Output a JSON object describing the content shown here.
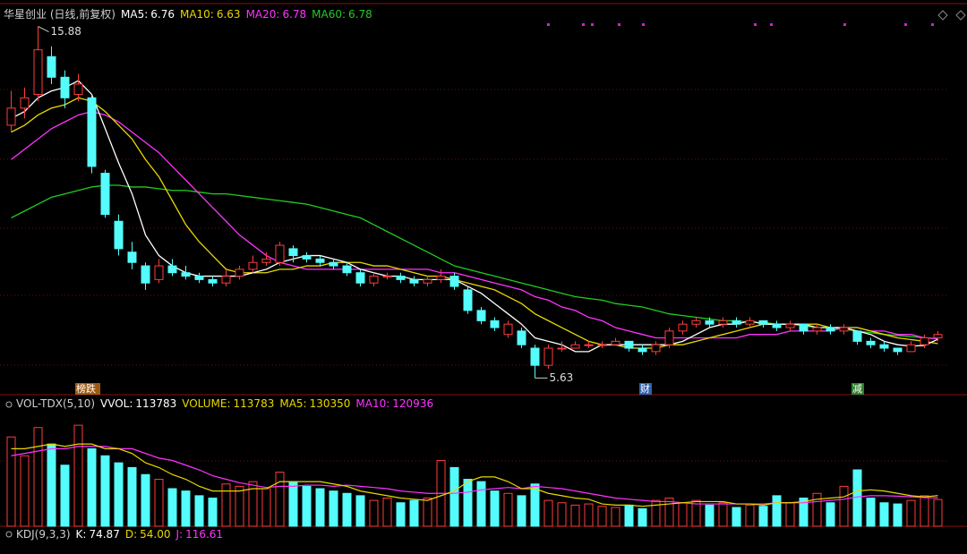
{
  "chart_data": [
    {
      "type": "candlestick",
      "title": "华星创业 (日线,前复权)",
      "indicators": [
        {
          "label": "MA5:",
          "value": 6.76,
          "color": "#ffffff"
        },
        {
          "label": "MA10:",
          "value": 6.63,
          "color": "#e8d800"
        },
        {
          "label": "MA20:",
          "value": 6.78,
          "color": "#ff33ff"
        },
        {
          "label": "MA60:",
          "value": 6.78,
          "color": "#22cc22"
        }
      ],
      "up_color": "#ff3c3c",
      "down_color": "#54fcfc",
      "open": [
        13.0,
        13.5,
        13.9,
        15.0,
        14.4,
        13.9,
        13.8,
        11.6,
        10.2,
        9.3,
        8.9,
        8.5,
        8.9,
        8.7,
        8.6,
        8.5,
        8.4,
        8.6,
        8.8,
        9.0,
        9.0,
        9.4,
        9.2,
        9.1,
        9.0,
        8.9,
        8.7,
        8.4,
        8.6,
        8.6,
        8.5,
        8.4,
        8.5,
        8.6,
        8.2,
        7.6,
        7.3,
        6.9,
        7.0,
        6.5,
        6.0,
        6.5,
        6.5,
        6.6,
        6.6,
        6.6,
        6.7,
        6.5,
        6.4,
        6.6,
        7.0,
        7.2,
        7.3,
        7.2,
        7.3,
        7.2,
        7.3,
        7.2,
        7.1,
        7.2,
        7.0,
        7.1,
        7.0,
        7.0,
        6.7,
        6.6,
        6.5,
        6.4,
        6.6,
        6.8
      ],
      "high": [
        14.0,
        14.1,
        15.88,
        15.3,
        14.6,
        14.5,
        13.9,
        11.7,
        10.4,
        9.6,
        9.0,
        9.1,
        9.1,
        8.9,
        8.7,
        8.6,
        8.8,
        8.9,
        9.2,
        9.3,
        9.6,
        9.5,
        9.3,
        9.2,
        9.1,
        9.0,
        8.8,
        8.7,
        8.7,
        8.7,
        8.6,
        8.6,
        8.8,
        8.7,
        8.3,
        7.7,
        7.4,
        7.3,
        7.1,
        6.6,
        6.6,
        6.7,
        6.7,
        6.7,
        6.7,
        6.8,
        6.7,
        6.6,
        6.7,
        7.1,
        7.3,
        7.4,
        7.4,
        7.4,
        7.4,
        7.4,
        7.3,
        7.3,
        7.3,
        7.2,
        7.2,
        7.2,
        7.2,
        7.0,
        6.8,
        6.7,
        6.5,
        6.7,
        6.9,
        7.0
      ],
      "low": [
        12.8,
        13.2,
        13.7,
        14.2,
        13.5,
        13.7,
        11.6,
        10.3,
        9.2,
        8.8,
        8.2,
        8.4,
        8.6,
        8.5,
        8.4,
        8.3,
        8.3,
        8.5,
        8.7,
        8.9,
        8.9,
        9.0,
        9.0,
        8.9,
        8.8,
        8.6,
        8.3,
        8.3,
        8.5,
        8.4,
        8.3,
        8.3,
        8.4,
        8.2,
        7.5,
        7.2,
        7.0,
        6.8,
        6.5,
        5.63,
        5.9,
        6.4,
        6.5,
        6.5,
        6.5,
        6.6,
        6.4,
        6.3,
        6.3,
        6.5,
        6.9,
        7.1,
        7.1,
        7.1,
        7.1,
        7.1,
        7.1,
        7.0,
        7.0,
        6.9,
        6.9,
        6.9,
        6.9,
        6.6,
        6.5,
        6.4,
        6.3,
        6.4,
        6.5,
        6.7
      ],
      "close": [
        13.5,
        13.8,
        15.2,
        14.4,
        13.8,
        14.2,
        11.8,
        10.4,
        9.4,
        9.0,
        8.4,
        8.9,
        8.7,
        8.6,
        8.5,
        8.4,
        8.6,
        8.8,
        9.0,
        9.1,
        9.5,
        9.2,
        9.1,
        9.0,
        8.9,
        8.7,
        8.4,
        8.6,
        8.6,
        8.5,
        8.4,
        8.5,
        8.6,
        8.3,
        7.6,
        7.3,
        7.1,
        7.2,
        6.6,
        6.0,
        6.5,
        6.5,
        6.6,
        6.6,
        6.6,
        6.7,
        6.5,
        6.4,
        6.6,
        7.0,
        7.2,
        7.3,
        7.2,
        7.3,
        7.2,
        7.3,
        7.2,
        7.1,
        7.2,
        7.0,
        7.1,
        7.0,
        7.1,
        6.7,
        6.6,
        6.5,
        6.4,
        6.6,
        6.8,
        6.9
      ],
      "series": [
        {
          "name": "MA60",
          "color": "#22cc22",
          "values": [
            10.3,
            10.5,
            10.7,
            10.9,
            11.0,
            11.1,
            11.2,
            11.25,
            11.25,
            11.2,
            11.2,
            11.15,
            11.1,
            11.1,
            11.05,
            11.0,
            11.0,
            10.95,
            10.9,
            10.85,
            10.8,
            10.75,
            10.7,
            10.6,
            10.5,
            10.4,
            10.3,
            10.1,
            9.9,
            9.7,
            9.5,
            9.3,
            9.1,
            8.9,
            8.8,
            8.7,
            8.6,
            8.5,
            8.4,
            8.3,
            8.2,
            8.1,
            8.0,
            7.95,
            7.9,
            7.8,
            7.75,
            7.7,
            7.6,
            7.5,
            7.45,
            7.4,
            7.35,
            7.3,
            7.3,
            7.25,
            7.25,
            7.2,
            7.2,
            7.15,
            7.1,
            7.1,
            7.05,
            7.0,
            6.95,
            6.9,
            6.87,
            6.84,
            6.8,
            6.78
          ]
        },
        {
          "name": "MA20",
          "color": "#ff33ff",
          "values": [
            12.0,
            12.3,
            12.6,
            12.9,
            13.1,
            13.3,
            13.4,
            13.3,
            13.1,
            12.8,
            12.5,
            12.2,
            11.8,
            11.4,
            11.0,
            10.6,
            10.2,
            9.8,
            9.5,
            9.2,
            9.0,
            8.9,
            8.8,
            8.8,
            8.8,
            8.8,
            8.8,
            8.8,
            8.8,
            8.8,
            8.8,
            8.8,
            8.7,
            8.7,
            8.6,
            8.5,
            8.4,
            8.3,
            8.2,
            8.0,
            7.9,
            7.7,
            7.6,
            7.4,
            7.3,
            7.1,
            7.0,
            6.9,
            6.8,
            6.8,
            6.8,
            6.8,
            6.8,
            6.8,
            6.8,
            6.9,
            6.9,
            6.9,
            7.0,
            7.0,
            7.0,
            7.0,
            7.1,
            7.1,
            7.0,
            7.0,
            6.9,
            6.9,
            6.8,
            6.78
          ]
        },
        {
          "name": "MA10",
          "color": "#e8d800",
          "values": [
            12.8,
            13.0,
            13.3,
            13.5,
            13.6,
            13.8,
            13.7,
            13.4,
            13.0,
            12.6,
            12.0,
            11.5,
            10.8,
            10.1,
            9.6,
            9.2,
            8.8,
            8.7,
            8.7,
            8.7,
            8.8,
            8.8,
            8.9,
            8.9,
            9.0,
            9.0,
            9.0,
            8.9,
            8.9,
            8.8,
            8.7,
            8.6,
            8.6,
            8.5,
            8.4,
            8.3,
            8.2,
            8.0,
            7.8,
            7.5,
            7.3,
            7.1,
            6.9,
            6.7,
            6.6,
            6.6,
            6.5,
            6.5,
            6.5,
            6.6,
            6.6,
            6.7,
            6.8,
            6.9,
            7.0,
            7.1,
            7.2,
            7.2,
            7.2,
            7.2,
            7.2,
            7.1,
            7.1,
            7.1,
            7.0,
            6.9,
            6.8,
            6.75,
            6.7,
            6.63
          ]
        },
        {
          "name": "MA5",
          "color": "#ffffff",
          "values": [
            13.2,
            13.4,
            13.8,
            14.0,
            14.1,
            14.3,
            13.9,
            12.9,
            11.9,
            11.0,
            9.8,
            9.2,
            8.9,
            8.7,
            8.6,
            8.6,
            8.6,
            8.6,
            8.7,
            8.8,
            9.0,
            9.1,
            9.2,
            9.2,
            9.1,
            9.0,
            8.8,
            8.7,
            8.6,
            8.6,
            8.5,
            8.5,
            8.5,
            8.5,
            8.3,
            8.1,
            7.8,
            7.5,
            7.2,
            6.8,
            6.7,
            6.6,
            6.4,
            6.4,
            6.6,
            6.6,
            6.6,
            6.6,
            6.6,
            6.6,
            6.7,
            6.9,
            7.1,
            7.2,
            7.2,
            7.3,
            7.2,
            7.2,
            7.2,
            7.2,
            7.1,
            7.1,
            7.1,
            7.0,
            6.9,
            6.7,
            6.6,
            6.56,
            6.58,
            6.76
          ]
        }
      ],
      "events": [
        "榜跌",
        "财",
        "减"
      ],
      "ylim": [
        5.3,
        16.0
      ]
    },
    {
      "type": "bar",
      "title": "VOL-TDX(5,10)",
      "indicators": [
        {
          "label": "VVOL:",
          "value": 113783,
          "color": "#ffffff"
        },
        {
          "label": "VOLUME:",
          "value": 113783,
          "color": "#e8d800"
        },
        {
          "label": "MA5:",
          "value": 130350,
          "color": "#e8d800"
        },
        {
          "label": "MA10:",
          "value": 120936,
          "color": "#ff33ff"
        }
      ],
      "values": [
        380000,
        300000,
        420000,
        350000,
        260000,
        430000,
        330000,
        300000,
        270000,
        250000,
        220000,
        200000,
        160000,
        150000,
        130000,
        120000,
        180000,
        170000,
        190000,
        160000,
        230000,
        190000,
        170000,
        160000,
        150000,
        140000,
        130000,
        110000,
        120000,
        100000,
        110000,
        120000,
        280000,
        250000,
        200000,
        190000,
        150000,
        140000,
        130000,
        180000,
        110000,
        100000,
        90000,
        95000,
        85000,
        80000,
        90000,
        75000,
        110000,
        120000,
        100000,
        110000,
        90000,
        100000,
        80000,
        90000,
        85000,
        130000,
        100000,
        120000,
        140000,
        100000,
        170000,
        240000,
        120000,
        100000,
        95000,
        110000,
        130000,
        113783
      ],
      "series": [
        {
          "name": "MA10",
          "color": "#ff33ff",
          "values": [
            300000,
            310000,
            320000,
            330000,
            330000,
            340000,
            340000,
            340000,
            330000,
            330000,
            310000,
            290000,
            280000,
            260000,
            240000,
            215000,
            200000,
            185000,
            175000,
            165000,
            170000,
            170000,
            175000,
            175000,
            170000,
            175000,
            170000,
            165000,
            160000,
            150000,
            145000,
            140000,
            140000,
            140000,
            145000,
            155000,
            160000,
            165000,
            160000,
            170000,
            165000,
            160000,
            150000,
            140000,
            130000,
            120000,
            115000,
            110000,
            105000,
            105000,
            100000,
            95000,
            95000,
            95000,
            95000,
            95000,
            95000,
            100000,
            100000,
            100000,
            105000,
            110000,
            115000,
            125000,
            130000,
            130000,
            128000,
            125000,
            122000,
            120936
          ]
        },
        {
          "name": "MA5",
          "color": "#e8d800",
          "values": [
            330000,
            330000,
            340000,
            350000,
            340000,
            350000,
            350000,
            330000,
            330000,
            310000,
            270000,
            250000,
            220000,
            200000,
            170000,
            150000,
            150000,
            150000,
            160000,
            160000,
            190000,
            190000,
            190000,
            190000,
            180000,
            170000,
            150000,
            140000,
            130000,
            120000,
            115000,
            110000,
            130000,
            150000,
            190000,
            210000,
            210000,
            190000,
            160000,
            160000,
            140000,
            130000,
            120000,
            115000,
            95000,
            90000,
            90000,
            85000,
            90000,
            95000,
            100000,
            105000,
            105000,
            105000,
            95000,
            95000,
            90000,
            100000,
            100000,
            105000,
            115000,
            120000,
            125000,
            150000,
            155000,
            150000,
            140000,
            130000,
            125000,
            130350
          ]
        }
      ],
      "ylim": [
        0,
        480000
      ]
    },
    {
      "type": "indicator",
      "title": "KDJ(9,3,3)",
      "indicators": [
        {
          "label": "K:",
          "value": 74.87,
          "color": "#ffffff"
        },
        {
          "label": "D:",
          "value": 54.0,
          "value_label": "54.00",
          "color": "#e8d800"
        },
        {
          "label": "J:",
          "value": 116.61,
          "color": "#ff33ff"
        }
      ]
    }
  ]
}
